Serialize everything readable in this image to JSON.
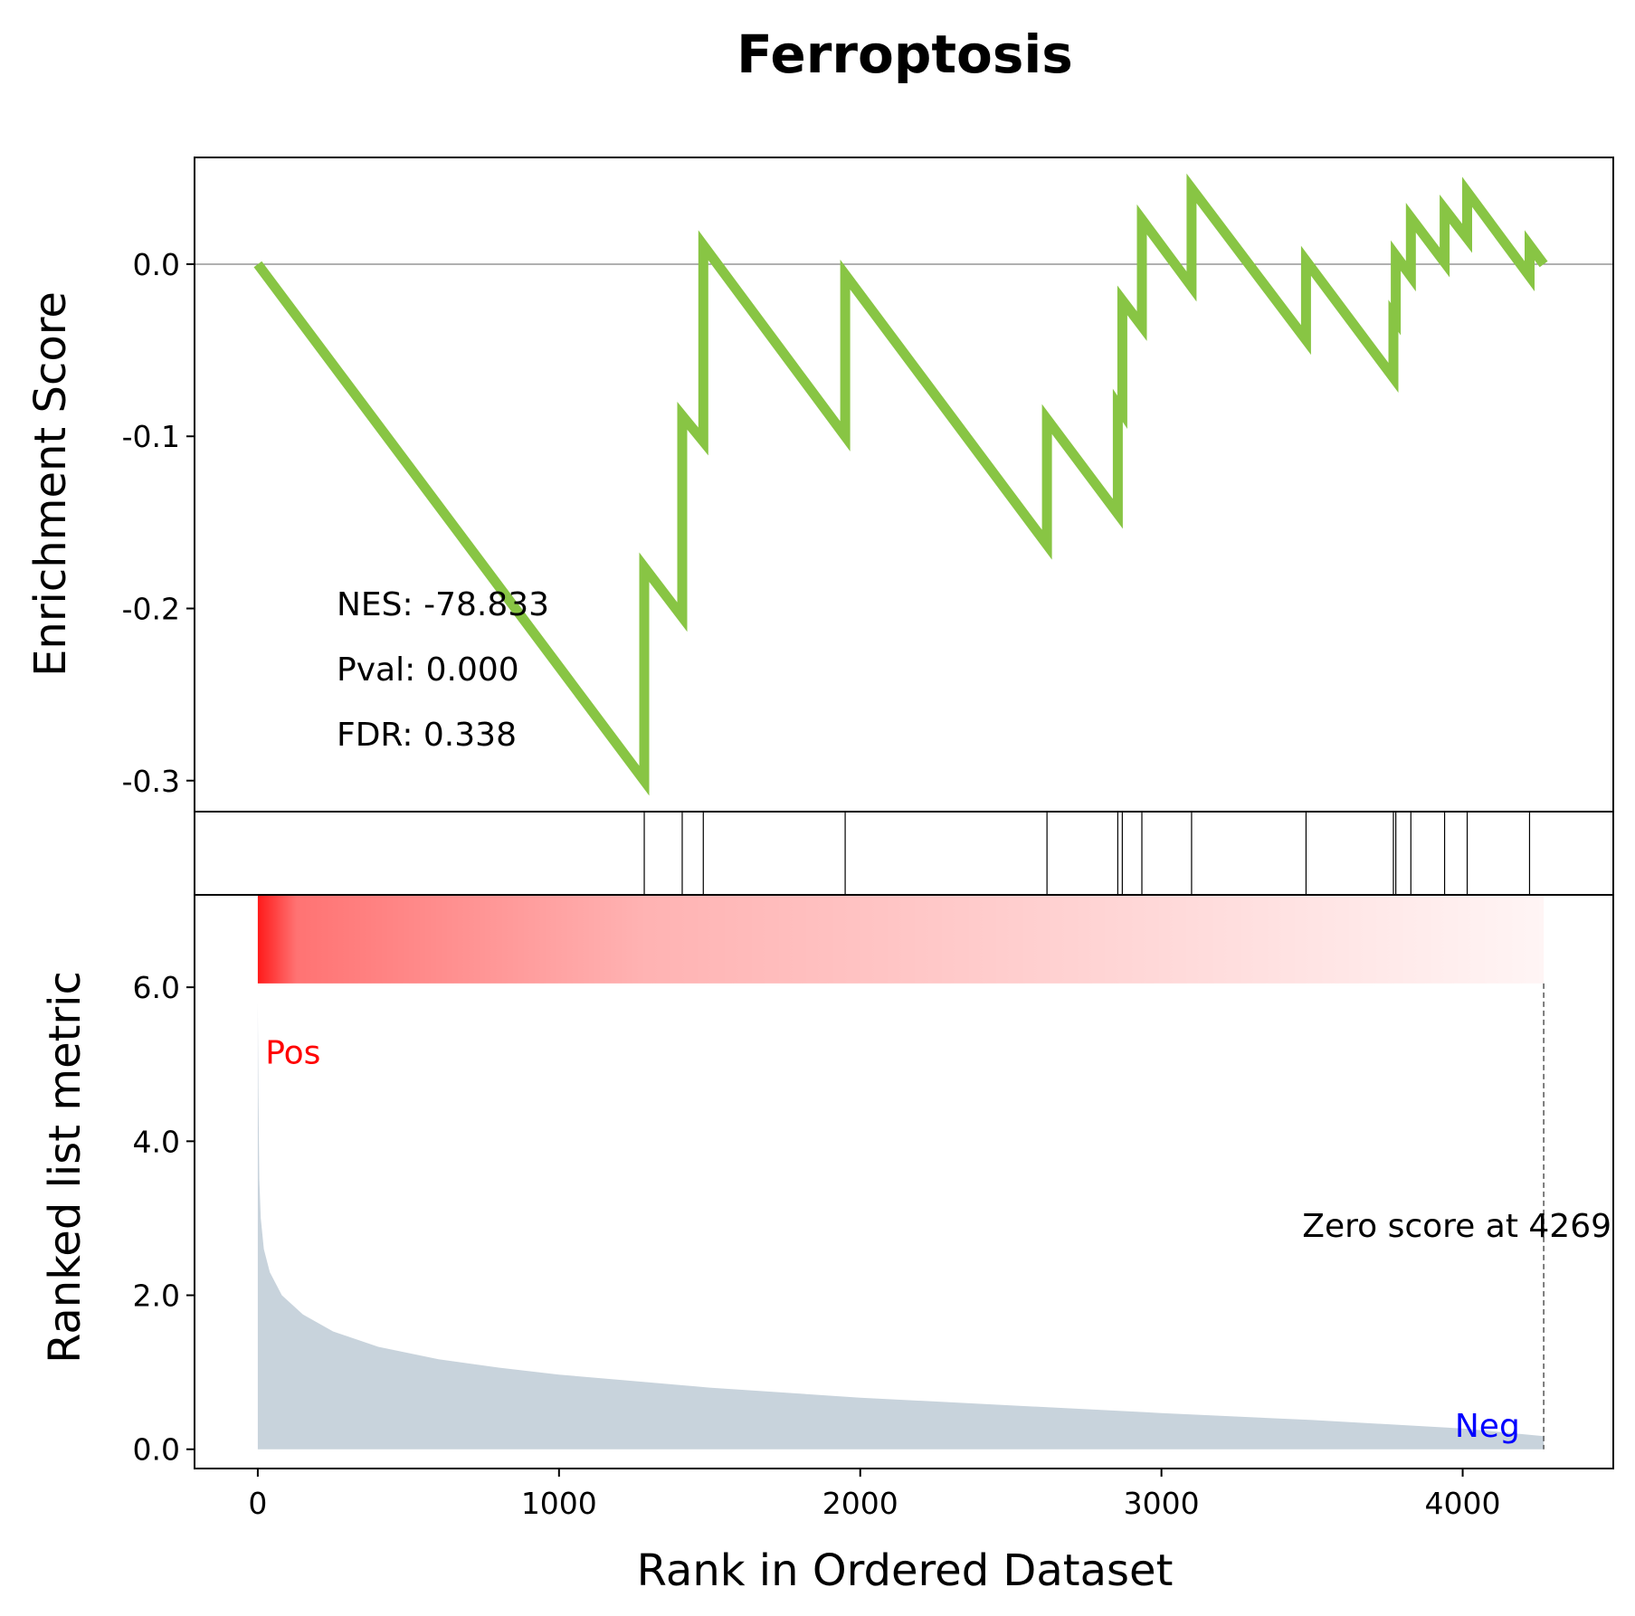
{
  "chart_data": {
    "type": "line",
    "title": "Ferroptosis",
    "xlabel": "Rank in Ordered Dataset",
    "xlim": [
      -210,
      4500
    ],
    "xticks": [
      0,
      1000,
      2000,
      3000,
      4000
    ],
    "top_panel": {
      "ylabel": "Enrichment Score",
      "ylim": [
        -0.318,
        0.062
      ],
      "yticks": [
        {
          "value": 0.0,
          "label": "0.0"
        },
        {
          "value": -0.1,
          "label": "-0.1"
        },
        {
          "value": -0.2,
          "label": "-0.2"
        },
        {
          "value": -0.3,
          "label": "-0.3"
        }
      ],
      "line_color": "#88c544",
      "baseline_color": "#808080",
      "running_es": [
        [
          0,
          0.0
        ],
        [
          1283,
          -0.3
        ],
        [
          1283,
          -0.176
        ],
        [
          1409,
          -0.205
        ],
        [
          1409,
          -0.088
        ],
        [
          1479,
          -0.103
        ],
        [
          1479,
          0.011
        ],
        [
          1950,
          -0.1
        ],
        [
          1950,
          -0.006
        ],
        [
          2620,
          -0.163
        ],
        [
          2620,
          -0.09
        ],
        [
          2855,
          -0.145
        ],
        [
          2855,
          -0.082
        ],
        [
          2870,
          -0.086
        ],
        [
          2870,
          -0.021
        ],
        [
          2935,
          -0.036
        ],
        [
          2935,
          0.026
        ],
        [
          3100,
          -0.013
        ],
        [
          3100,
          0.044
        ],
        [
          3480,
          -0.044
        ],
        [
          3480,
          0.002
        ],
        [
          3770,
          -0.066
        ],
        [
          3770,
          -0.03
        ],
        [
          3778,
          -0.032
        ],
        [
          3778,
          0.005
        ],
        [
          3828,
          -0.007
        ],
        [
          3828,
          0.027
        ],
        [
          3940,
          0.001
        ],
        [
          3940,
          0.032
        ],
        [
          4015,
          0.015
        ],
        [
          4015,
          0.042
        ],
        [
          4222,
          -0.007
        ],
        [
          4222,
          0.011
        ],
        [
          4269,
          0.0
        ]
      ],
      "stats": [
        "NES: -78.833",
        "Pval: 0.000",
        "FDR: 0.338"
      ]
    },
    "hits": [
      1283,
      1409,
      1479,
      1950,
      2620,
      2855,
      2870,
      2935,
      3100,
      3480,
      3770,
      3778,
      3828,
      3940,
      4015,
      4222
    ],
    "bottom_panel": {
      "ylabel": "Ranked list metric",
      "ylim": [
        -0.25,
        7.2
      ],
      "yticks": [
        {
          "value": 0.0,
          "label": "0.0"
        },
        {
          "value": 2.0,
          "label": "2.0"
        },
        {
          "value": 4.0,
          "label": "4.0"
        },
        {
          "value": 6.0,
          "label": "6.0"
        }
      ],
      "fill_color": "#c8d3dc",
      "heat_color": "#ff0000",
      "heat_band_ylim": [
        6.05,
        7.2
      ],
      "metric_curve": [
        [
          0,
          5.8
        ],
        [
          2,
          4.6
        ],
        [
          5,
          3.5
        ],
        [
          10,
          3.0
        ],
        [
          20,
          2.6
        ],
        [
          40,
          2.3
        ],
        [
          80,
          2.0
        ],
        [
          150,
          1.75
        ],
        [
          250,
          1.53
        ],
        [
          400,
          1.33
        ],
        [
          600,
          1.17
        ],
        [
          800,
          1.06
        ],
        [
          1000,
          0.97
        ],
        [
          1500,
          0.8
        ],
        [
          2000,
          0.67
        ],
        [
          2500,
          0.57
        ],
        [
          3000,
          0.47
        ],
        [
          3500,
          0.38
        ],
        [
          4000,
          0.27
        ],
        [
          4269,
          0.17
        ]
      ],
      "zero_score_rank": 4269,
      "zero_score_label": "Zero score at 4269",
      "pos_label": "Pos",
      "neg_label": "Neg",
      "pos_color": "#ff0000",
      "neg_color": "#0000ff"
    }
  }
}
